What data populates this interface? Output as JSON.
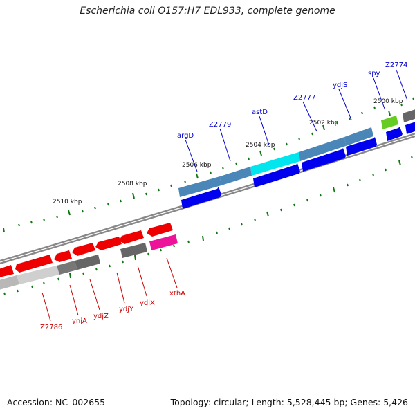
{
  "title": "Escherichia coli O157:H7 EDL933, complete genome",
  "accession": "Accession: NC_002655",
  "summary": "Topology: circular; Length: 5,528,445 bp; Genes: 5,426",
  "kbp_labels": [
    "2500 kbp",
    "2502 kbp",
    "2504 kbp",
    "2506 kbp",
    "2508 kbp",
    "2510 kbp"
  ],
  "genes_top": [
    "argD",
    "Z2779",
    "astD",
    "Z2777",
    "ydjS",
    "spy",
    "Z2774"
  ],
  "genes_bottom": [
    "Z2786",
    "ynjA",
    "ydjZ",
    "ydjY",
    "ydjX",
    "xthA"
  ],
  "colors": {
    "forward_cds": "#0000ee",
    "reverse_cds": "#ee0000",
    "blue_track": "#4a86b8",
    "highlight_track": "#00e5ee",
    "gray_track": "#666666",
    "magenta_track": "#ee1199",
    "green_track": "#66cc22",
    "tick": "#117711",
    "backbone": "#777777"
  }
}
